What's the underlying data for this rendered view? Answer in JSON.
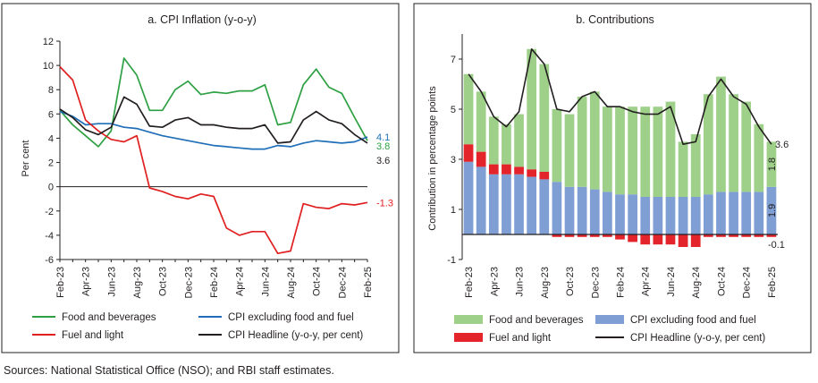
{
  "source_note": "Sources:  National Statistical Office (NSO); and RBI staff estimates.",
  "chart_data": [
    {
      "type": "line",
      "title": "a. CPI Inflation (y-o-y)",
      "ylabel": "Per cent",
      "xlabel": "",
      "ylim": [
        -6,
        12
      ],
      "yticks": [
        -6,
        -4,
        -2,
        0,
        2,
        4,
        6,
        8,
        10,
        12
      ],
      "x": [
        "Feb-23",
        "Mar-23",
        "Apr-23",
        "May-23",
        "Jun-23",
        "Jul-23",
        "Aug-23",
        "Sep-23",
        "Oct-23",
        "Nov-23",
        "Dec-23",
        "Jan-24",
        "Feb-24",
        "Mar-24",
        "Apr-24",
        "May-24",
        "Jun-24",
        "Jul-24",
        "Aug-24",
        "Sep-24",
        "Oct-24",
        "Nov-24",
        "Dec-24",
        "Jan-25",
        "Feb-25"
      ],
      "xtick_labels": [
        "Feb-23",
        "Apr-23",
        "Jun-23",
        "Aug-23",
        "Oct-23",
        "Dec-23",
        "Feb-24",
        "Apr-24",
        "Jun-24",
        "Aug-24",
        "Oct-24",
        "Dec-24",
        "Feb-25"
      ],
      "series": [
        {
          "name": "Food and beverages",
          "color": "#2ea043",
          "values": [
            6.3,
            5.1,
            4.2,
            3.3,
            4.6,
            10.6,
            9.2,
            6.3,
            6.3,
            8.0,
            8.7,
            7.6,
            7.8,
            7.7,
            7.9,
            7.9,
            8.4,
            5.1,
            5.3,
            8.4,
            9.7,
            8.2,
            7.7,
            5.7,
            3.8
          ]
        },
        {
          "name": "CPI excluding food and fuel",
          "color": "#1f6fb8",
          "values": [
            6.2,
            5.8,
            5.1,
            5.2,
            5.2,
            4.9,
            4.8,
            4.5,
            4.2,
            4.0,
            3.8,
            3.6,
            3.4,
            3.3,
            3.2,
            3.1,
            3.1,
            3.4,
            3.3,
            3.6,
            3.8,
            3.7,
            3.6,
            3.7,
            4.1
          ]
        },
        {
          "name": "Fuel and light",
          "color": "#e02020",
          "values": [
            9.9,
            8.8,
            5.5,
            4.6,
            3.9,
            3.7,
            4.2,
            -0.1,
            -0.4,
            -0.8,
            -1.0,
            -0.6,
            -0.8,
            -3.4,
            -4.0,
            -3.7,
            -3.7,
            -5.5,
            -5.3,
            -1.4,
            -1.7,
            -1.8,
            -1.4,
            -1.5,
            -1.3
          ]
        },
        {
          "name": "CPI Headline (y-o-y, per cent)",
          "color": "#231f20",
          "values": [
            6.4,
            5.7,
            4.7,
            4.3,
            4.9,
            7.4,
            6.8,
            5.0,
            4.9,
            5.5,
            5.7,
            5.1,
            5.1,
            4.9,
            4.8,
            4.8,
            5.1,
            3.6,
            3.7,
            5.5,
            6.2,
            5.5,
            5.2,
            4.3,
            3.6
          ]
        }
      ],
      "end_labels": [
        {
          "text": "4.1",
          "color": "#1f6fb8"
        },
        {
          "text": "3.8",
          "color": "#2ea043"
        },
        {
          "text": "3.6",
          "color": "#231f20"
        },
        {
          "text": "-1.3",
          "color": "#e02020"
        }
      ],
      "legend": {
        "placement": "bottom",
        "items": [
          {
            "name": "Food and beverages",
            "color": "#2ea043"
          },
          {
            "name": "CPI excluding food and fuel",
            "color": "#1f6fb8"
          },
          {
            "name": "Fuel and light",
            "color": "#e02020"
          },
          {
            "name": "CPI Headline (y-o-y, per cent)",
            "color": "#231f20"
          }
        ]
      }
    },
    {
      "type": "bar",
      "stacked": true,
      "title": "b. Contributions",
      "ylabel": "Contribution in percentage points",
      "xlabel": "",
      "ylim": [
        -1,
        8
      ],
      "yticks": [
        -1,
        1,
        3,
        5,
        7
      ],
      "categories": [
        "Feb-23",
        "Mar-23",
        "Apr-23",
        "May-23",
        "Jun-23",
        "Jul-23",
        "Aug-23",
        "Sep-23",
        "Oct-23",
        "Nov-23",
        "Dec-23",
        "Jan-24",
        "Feb-24",
        "Mar-24",
        "Apr-24",
        "May-24",
        "Jun-24",
        "Jul-24",
        "Aug-24",
        "Sep-24",
        "Oct-24",
        "Nov-24",
        "Dec-24",
        "Jan-25",
        "Feb-25"
      ],
      "xtick_labels": [
        "Feb-23",
        "Apr-23",
        "Jun-23",
        "Aug-23",
        "Oct-23",
        "Dec-23",
        "Feb-24",
        "Apr-24",
        "Jun-24",
        "Aug-24",
        "Oct-24",
        "Dec-24",
        "Feb-25"
      ],
      "series": [
        {
          "name": "CPI excluding food and fuel",
          "color": "#7f9fd4",
          "values": [
            2.9,
            2.7,
            2.4,
            2.4,
            2.4,
            2.3,
            2.2,
            2.1,
            1.9,
            1.9,
            1.8,
            1.7,
            1.6,
            1.6,
            1.5,
            1.5,
            1.5,
            1.5,
            1.5,
            1.6,
            1.7,
            1.7,
            1.7,
            1.7,
            1.9
          ]
        },
        {
          "name": "Food and beverages",
          "color": "#9ed08a",
          "values": [
            2.8,
            2.4,
            1.9,
            1.6,
            2.1,
            4.8,
            4.3,
            2.9,
            2.9,
            3.6,
            3.9,
            3.4,
            3.5,
            3.5,
            3.6,
            3.6,
            3.8,
            2.2,
            2.5,
            4.0,
            4.6,
            3.9,
            3.6,
            2.7,
            1.8
          ]
        },
        {
          "name": "Fuel and light",
          "color": "#e3242b",
          "values": [
            0.7,
            0.6,
            0.4,
            0.4,
            0.3,
            0.3,
            0.3,
            -0.1,
            -0.1,
            -0.1,
            -0.1,
            -0.1,
            -0.2,
            -0.3,
            -0.4,
            -0.4,
            -0.4,
            -0.5,
            -0.5,
            -0.1,
            -0.1,
            -0.1,
            -0.1,
            -0.1,
            -0.1
          ]
        }
      ],
      "headline": {
        "name": "CPI Headline (y-o-y, per cent)",
        "color": "#231f20",
        "values": [
          6.4,
          5.7,
          4.7,
          4.3,
          4.9,
          7.4,
          6.8,
          5.0,
          4.9,
          5.5,
          5.7,
          5.1,
          5.1,
          4.9,
          4.8,
          4.8,
          5.1,
          3.6,
          3.7,
          5.5,
          6.2,
          5.5,
          5.2,
          4.3,
          3.6
        ]
      },
      "annotations": [
        {
          "text": "3.6"
        },
        {
          "text": "1.8"
        },
        {
          "text": "1.9"
        },
        {
          "text": "-0.1"
        }
      ],
      "legend": {
        "placement": "bottom",
        "items": [
          {
            "name": "Food and beverages",
            "color": "#9ed08a",
            "kind": "box"
          },
          {
            "name": "CPI excluding food and fuel",
            "color": "#7f9fd4",
            "kind": "box"
          },
          {
            "name": "Fuel and light",
            "color": "#e3242b",
            "kind": "box"
          },
          {
            "name": "CPI Headline (y-o-y, per cent)",
            "color": "#231f20",
            "kind": "line"
          }
        ]
      }
    }
  ]
}
